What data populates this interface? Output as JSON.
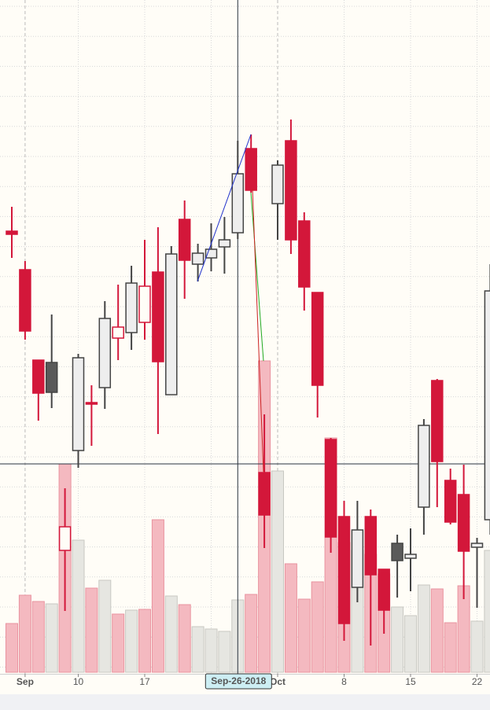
{
  "chart_data": {
    "type": "candlestick",
    "categories": [
      null,
      "Sep",
      null,
      null,
      null,
      "10",
      null,
      null,
      null,
      null,
      "17",
      null,
      null,
      null,
      null,
      null,
      null,
      null,
      null,
      null,
      "Oct",
      null,
      null,
      null,
      null,
      "8",
      null,
      null,
      null,
      null,
      "15",
      null,
      null,
      null,
      null,
      "22",
      null
    ],
    "crosshair_label": "Sep-26-2018",
    "crosshair_index": 17,
    "open": [
      609,
      560,
      445,
      442,
      203,
      330,
      391,
      410,
      473,
      480,
      493,
      557,
      401,
      624,
      567,
      575,
      589,
      607,
      714,
      302,
      644,
      724,
      622,
      531,
      344,
      246,
      156,
      246,
      179,
      212,
      193,
      258,
      419,
      292,
      274,
      207,
      242
    ],
    "high": [
      640,
      571,
      445,
      503,
      282,
      453,
      413,
      520,
      541,
      565,
      598,
      614,
      590,
      648,
      593,
      619,
      627,
      724,
      732,
      376,
      699,
      751,
      633,
      531,
      346,
      266,
      266,
      255,
      179,
      223,
      231,
      370,
      421,
      307,
      312,
      219,
      567
    ],
    "low": [
      575,
      471,
      368,
      384,
      126,
      308,
      336,
      383,
      445,
      458,
      471,
      351,
      401,
      523,
      545,
      558,
      555,
      599,
      658,
      206,
      598,
      580,
      508,
      372,
      200,
      88,
      137,
      82,
      97,
      143,
      151,
      223,
      258,
      236,
      141,
      130,
      223
    ],
    "close": [
      605,
      482,
      403,
      404,
      233,
      448,
      389,
      498,
      487,
      543,
      539,
      443,
      580,
      572,
      581,
      586,
      598,
      682,
      661,
      248,
      693,
      598,
      538,
      413,
      220,
      110,
      229,
      172,
      127,
      190,
      198,
      362,
      316,
      239,
      202,
      212,
      533
    ],
    "fills": [
      "#d3173a",
      "#d3173a",
      "#d3173a",
      "#5a5a5a",
      "#fffdf7",
      "#eeeeee",
      "#d3173a",
      "#eeeeee",
      "#fffdf7",
      "#eeeeee",
      "#fffdf7",
      "#d3173a",
      "#eeeeee",
      "#d3173a",
      "#eeeeee",
      "#eeeeee",
      "#eeeeee",
      "#eeeeee",
      "#d3173a",
      "#d3173a",
      "#eeeeee",
      "#d3173a",
      "#d3173a",
      "#d3173a",
      "#d3173a",
      "#d3173a",
      "#eeeeee",
      "#d3173a",
      "#d3173a",
      "#5a5a5a",
      "#eeeeee",
      "#eeeeee",
      "#d3173a",
      "#d3173a",
      "#d3173a",
      "#eeeeee",
      "#eeeeee"
    ],
    "strokes": [
      "#d3173a",
      "#d3173a",
      "#d3173a",
      "#444444",
      "#d3173a",
      "#444444",
      "#d3173a",
      "#444444",
      "#d3173a",
      "#444444",
      "#d3173a",
      "#d3173a",
      "#444444",
      "#d3173a",
      "#444444",
      "#444444",
      "#444444",
      "#444444",
      "#d3173a",
      "#d3173a",
      "#444444",
      "#d3173a",
      "#d3173a",
      "#d3173a",
      "#d3173a",
      "#d3173a",
      "#444444",
      "#d3173a",
      "#d3173a",
      "#444444",
      "#444444",
      "#444444",
      "#d3173a",
      "#d3173a",
      "#d3173a",
      "#444444",
      "#444444"
    ],
    "volume": [
      62,
      98,
      90,
      87,
      265,
      168,
      107,
      117,
      74,
      79,
      80,
      194,
      97,
      86,
      58,
      55,
      52,
      92,
      99,
      396,
      256,
      138,
      93,
      115,
      298,
      165,
      155,
      150,
      125,
      83,
      72,
      111,
      106,
      63,
      110,
      65,
      155
    ],
    "volume_fills": [
      "#f4b9c0",
      "#f4b9c0",
      "#f4b9c0",
      "#e6e6e1",
      "#f4b9c0",
      "#e6e6e1",
      "#f4b9c0",
      "#e6e6e1",
      "#f4b9c0",
      "#e6e6e1",
      "#f4b9c0",
      "#f4b9c0",
      "#e6e6e1",
      "#f4b9c0",
      "#e6e6e1",
      "#e6e6e1",
      "#e6e6e1",
      "#e6e6e1",
      "#f4b9c0",
      "#f4b9c0",
      "#e6e6e1",
      "#f4b9c0",
      "#f4b9c0",
      "#f4b9c0",
      "#f4b9c0",
      "#f4b9c0",
      "#e6e6e1",
      "#f4b9c0",
      "#f4b9c0",
      "#e6e6e1",
      "#e6e6e1",
      "#e6e6e1",
      "#f4b9c0",
      "#f4b9c0",
      "#f4b9c0",
      "#e6e6e1",
      "#e6e6e1"
    ],
    "ylim": [
      48,
      903
    ],
    "volume_ylim": [
      0,
      855
    ],
    "grid": true
  }
}
